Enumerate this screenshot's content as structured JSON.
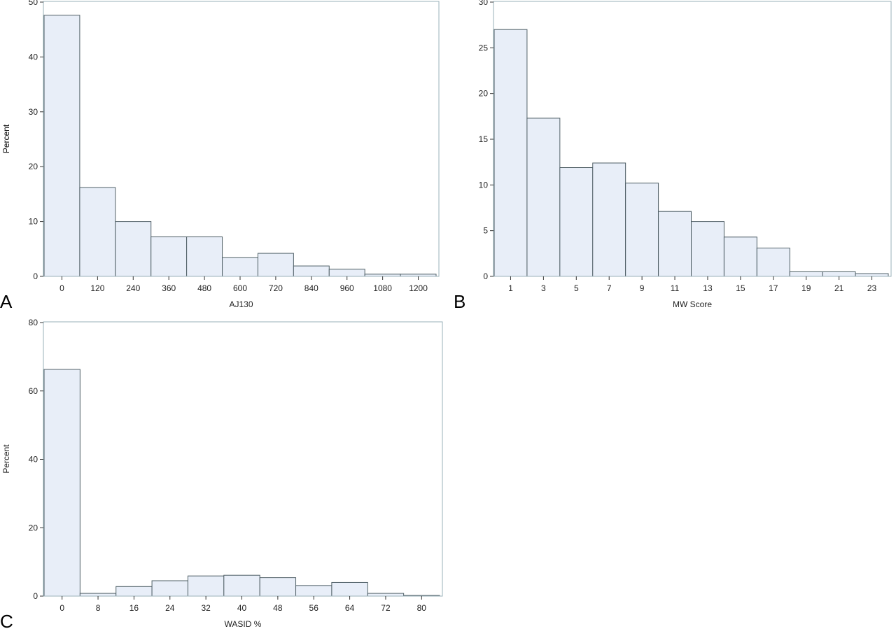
{
  "chart_data": [
    {
      "type": "bar",
      "panel_label": "A",
      "xlabel": "AJ130",
      "ylabel": "Percent",
      "ylim": [
        0,
        50
      ],
      "yticks": [
        0,
        10,
        20,
        30,
        40,
        50
      ],
      "categories": [
        "0",
        "120",
        "240",
        "360",
        "480",
        "600",
        "720",
        "840",
        "960",
        "1080",
        "1200"
      ],
      "values": [
        47.6,
        16.2,
        10.0,
        7.2,
        7.2,
        3.4,
        4.2,
        1.9,
        1.3,
        0.4,
        0.4
      ],
      "colors": {
        "bar_fill": "#e8eef8",
        "bar_stroke": "#4f5f66",
        "frame": "#9ab0b8"
      }
    },
    {
      "type": "bar",
      "panel_label": "B",
      "xlabel": "MW Score",
      "ylabel": "Percent",
      "ylim": [
        0,
        30
      ],
      "yticks": [
        0,
        5,
        10,
        15,
        20,
        25,
        30
      ],
      "categories": [
        "1",
        "3",
        "5",
        "7",
        "9",
        "11",
        "13",
        "15",
        "17",
        "19",
        "21",
        "23"
      ],
      "values": [
        27.0,
        17.3,
        11.9,
        12.4,
        10.2,
        7.1,
        6.0,
        4.3,
        3.1,
        0.5,
        0.5,
        0.3
      ],
      "colors": {
        "bar_fill": "#e8eef8",
        "bar_stroke": "#4f5f66",
        "frame": "#9ab0b8"
      }
    },
    {
      "type": "bar",
      "panel_label": "C",
      "xlabel": "WASID %",
      "ylabel": "Percent",
      "ylim": [
        0,
        80
      ],
      "yticks": [
        0,
        20,
        40,
        60,
        80
      ],
      "categories": [
        "0",
        "8",
        "16",
        "24",
        "32",
        "40",
        "48",
        "56",
        "64",
        "72",
        "80"
      ],
      "values": [
        66.3,
        0.8,
        2.8,
        4.5,
        5.9,
        6.1,
        5.4,
        3.1,
        4.0,
        0.8,
        0.2
      ],
      "colors": {
        "bar_fill": "#e8eef8",
        "bar_stroke": "#4f5f66",
        "frame": "#9ab0b8"
      }
    }
  ]
}
